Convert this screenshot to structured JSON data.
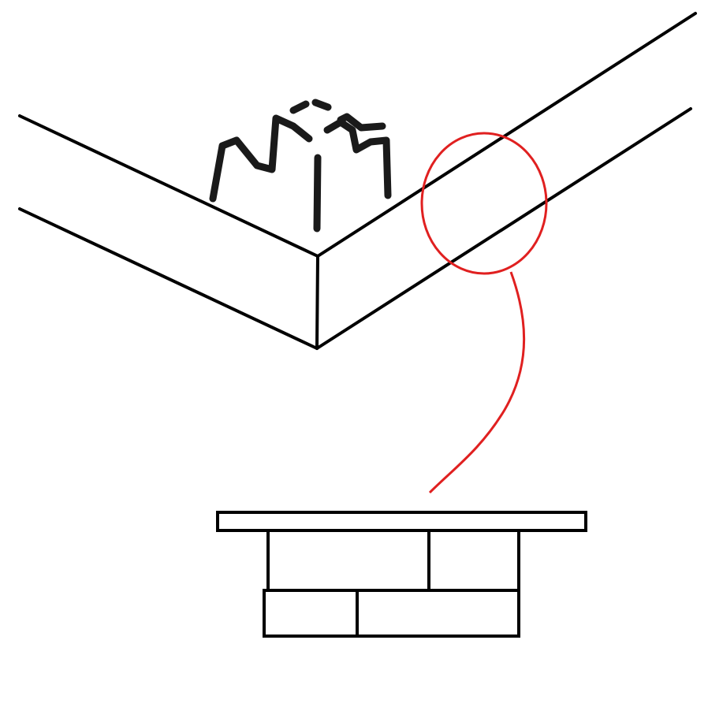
{
  "colors": {
    "background": "#ffffff",
    "line": "#000000",
    "scribble": "#1a1a1a",
    "highlight": "#e02020"
  },
  "elements": {
    "corner_structure": "isometric-corner",
    "scribble_shape": "crown-like-scribble",
    "highlight_marker": "circle-callout",
    "detail_view": "layered-cross-section"
  }
}
